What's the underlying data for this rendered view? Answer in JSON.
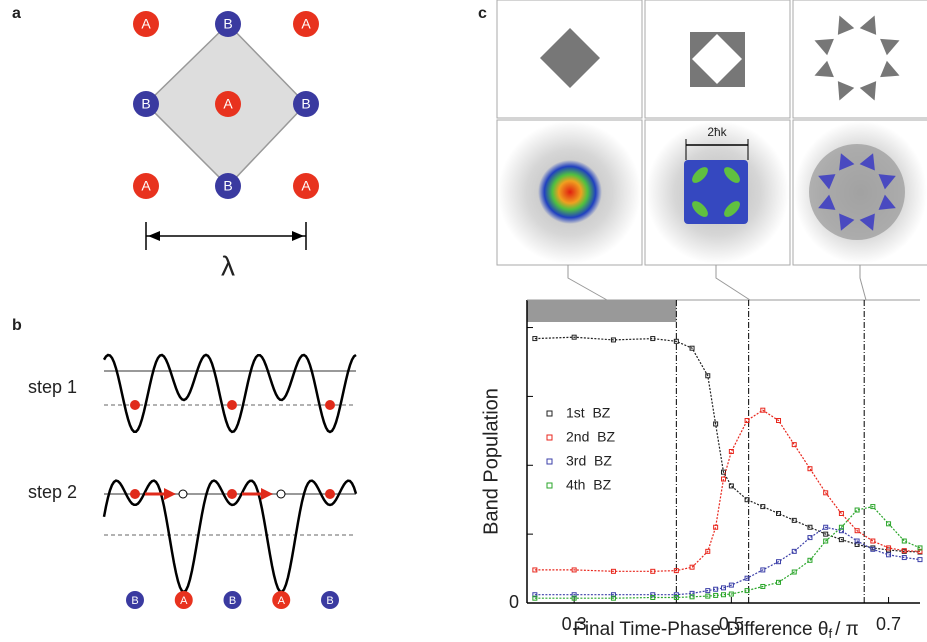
{
  "panels": {
    "a": {
      "label": "a",
      "nodes": [
        [
          "A",
          "B",
          "A"
        ],
        [
          "B",
          "A",
          "B"
        ],
        [
          "A",
          "B",
          "A"
        ]
      ],
      "scale_label": "λ"
    },
    "b": {
      "label": "b",
      "steps": [
        "step 1",
        "step 2"
      ],
      "sites": [
        "B",
        "A",
        "B",
        "A",
        "B"
      ]
    },
    "c": {
      "label": "c",
      "momentum_label": "2ħk"
    }
  },
  "chart_data": {
    "type": "line",
    "ylabel": "Band Population",
    "xlabel": [
      "Final Time-Phase Difference θ",
      "f",
      "/ π"
    ],
    "x": [
      0.25,
      0.3,
      0.35,
      0.4,
      0.43,
      0.45,
      0.47,
      0.48,
      0.49,
      0.5,
      0.52,
      0.54,
      0.56,
      0.58,
      0.6,
      0.62,
      0.64,
      0.66,
      0.68,
      0.7,
      0.72,
      0.74
    ],
    "series": [
      {
        "name": "1st  BZ",
        "color": "#222222",
        "values": [
          3.84,
          3.86,
          3.82,
          3.84,
          3.8,
          3.7,
          3.3,
          2.6,
          1.9,
          1.7,
          1.5,
          1.4,
          1.3,
          1.2,
          1.1,
          1.0,
          0.92,
          0.85,
          0.8,
          0.77,
          0.75,
          0.74
        ]
      },
      {
        "name": "2nd  BZ",
        "color": "#e8261c",
        "values": [
          0.48,
          0.48,
          0.46,
          0.46,
          0.47,
          0.52,
          0.75,
          1.1,
          1.8,
          2.2,
          2.65,
          2.8,
          2.65,
          2.3,
          1.95,
          1.6,
          1.3,
          1.05,
          0.9,
          0.8,
          0.76,
          0.75
        ]
      },
      {
        "name": "3rd  BZ",
        "color": "#3b3fa8",
        "values": [
          0.12,
          0.12,
          0.12,
          0.12,
          0.12,
          0.14,
          0.18,
          0.2,
          0.22,
          0.26,
          0.36,
          0.48,
          0.6,
          0.75,
          0.95,
          1.1,
          1.05,
          0.9,
          0.78,
          0.7,
          0.66,
          0.63
        ]
      },
      {
        "name": "4th  BZ",
        "color": "#2aa52a",
        "values": [
          0.07,
          0.07,
          0.07,
          0.08,
          0.08,
          0.09,
          0.1,
          0.11,
          0.12,
          0.13,
          0.18,
          0.24,
          0.3,
          0.45,
          0.62,
          0.9,
          1.1,
          1.35,
          1.4,
          1.15,
          0.9,
          0.8
        ]
      }
    ],
    "xlim": [
      0.24,
      0.74
    ],
    "xticks": [
      0.3,
      0.5,
      0.7
    ],
    "ylim": [
      0,
      4.4
    ],
    "yticks": [
      0
    ],
    "yminor": [
      1,
      2,
      3,
      4
    ],
    "vlines": [
      0.43,
      0.522,
      0.669
    ]
  }
}
